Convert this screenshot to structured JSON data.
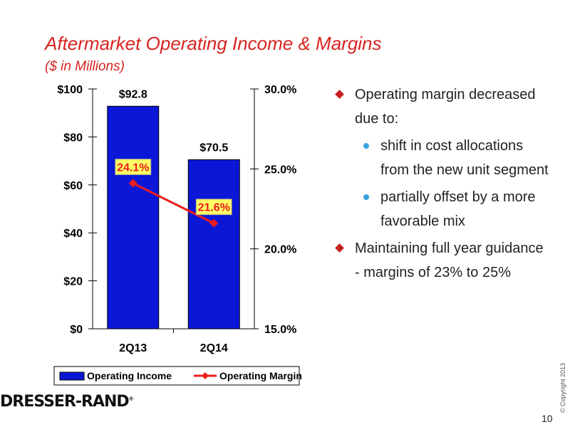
{
  "header": {
    "title": "Aftermarket Operating Income & Margins",
    "subtitle": "($ in Millions)"
  },
  "chart_data": {
    "type": "bar",
    "categories": [
      "2Q13",
      "2Q14"
    ],
    "series": [
      {
        "name": "Operating Income",
        "kind": "bar",
        "axis": "left",
        "values": [
          92.8,
          70.5
        ],
        "labels": [
          "$92.8",
          "$70.5"
        ],
        "color": "#0a17d6"
      },
      {
        "name": "Operating Margin",
        "kind": "line",
        "axis": "right",
        "values": [
          24.1,
          21.6
        ],
        "labels": [
          "24.1%",
          "21.6%"
        ],
        "color": "#ee1c1c"
      }
    ],
    "y_left": {
      "min": 0,
      "max": 100,
      "ticks": [
        0,
        20,
        40,
        60,
        80,
        100
      ],
      "tick_labels": [
        "$0",
        "$20",
        "$40",
        "$60",
        "$80",
        "$100"
      ]
    },
    "y_right": {
      "min": 15,
      "max": 30,
      "ticks": [
        15,
        20,
        25,
        30
      ],
      "tick_labels": [
        "15.0%",
        "20.0%",
        "25.0%",
        "30.0%"
      ]
    },
    "legend_position": "bottom",
    "grid": false
  },
  "bullets": [
    {
      "level": 1,
      "text": "Operating margin decreased due to:"
    },
    {
      "level": 2,
      "text": "shift in cost allocations from the new unit segment"
    },
    {
      "level": 2,
      "text": "partially offset by a more favorable mix"
    },
    {
      "level": 1,
      "text": "Maintaining full year guidance - margins of 23% to 25%"
    }
  ],
  "footer": {
    "logo_text": "DRESSER-RAND",
    "logo_mark": "®",
    "copyright": "© Copyright 2013",
    "page_number": "10"
  },
  "colors": {
    "title": "#d7231f",
    "bar": "#0a17d6",
    "line": "#ee1c1c",
    "label_bg": "#ffff66",
    "bullet_diamond": "#c81e1e",
    "bullet_dot": "#3aa3df"
  }
}
